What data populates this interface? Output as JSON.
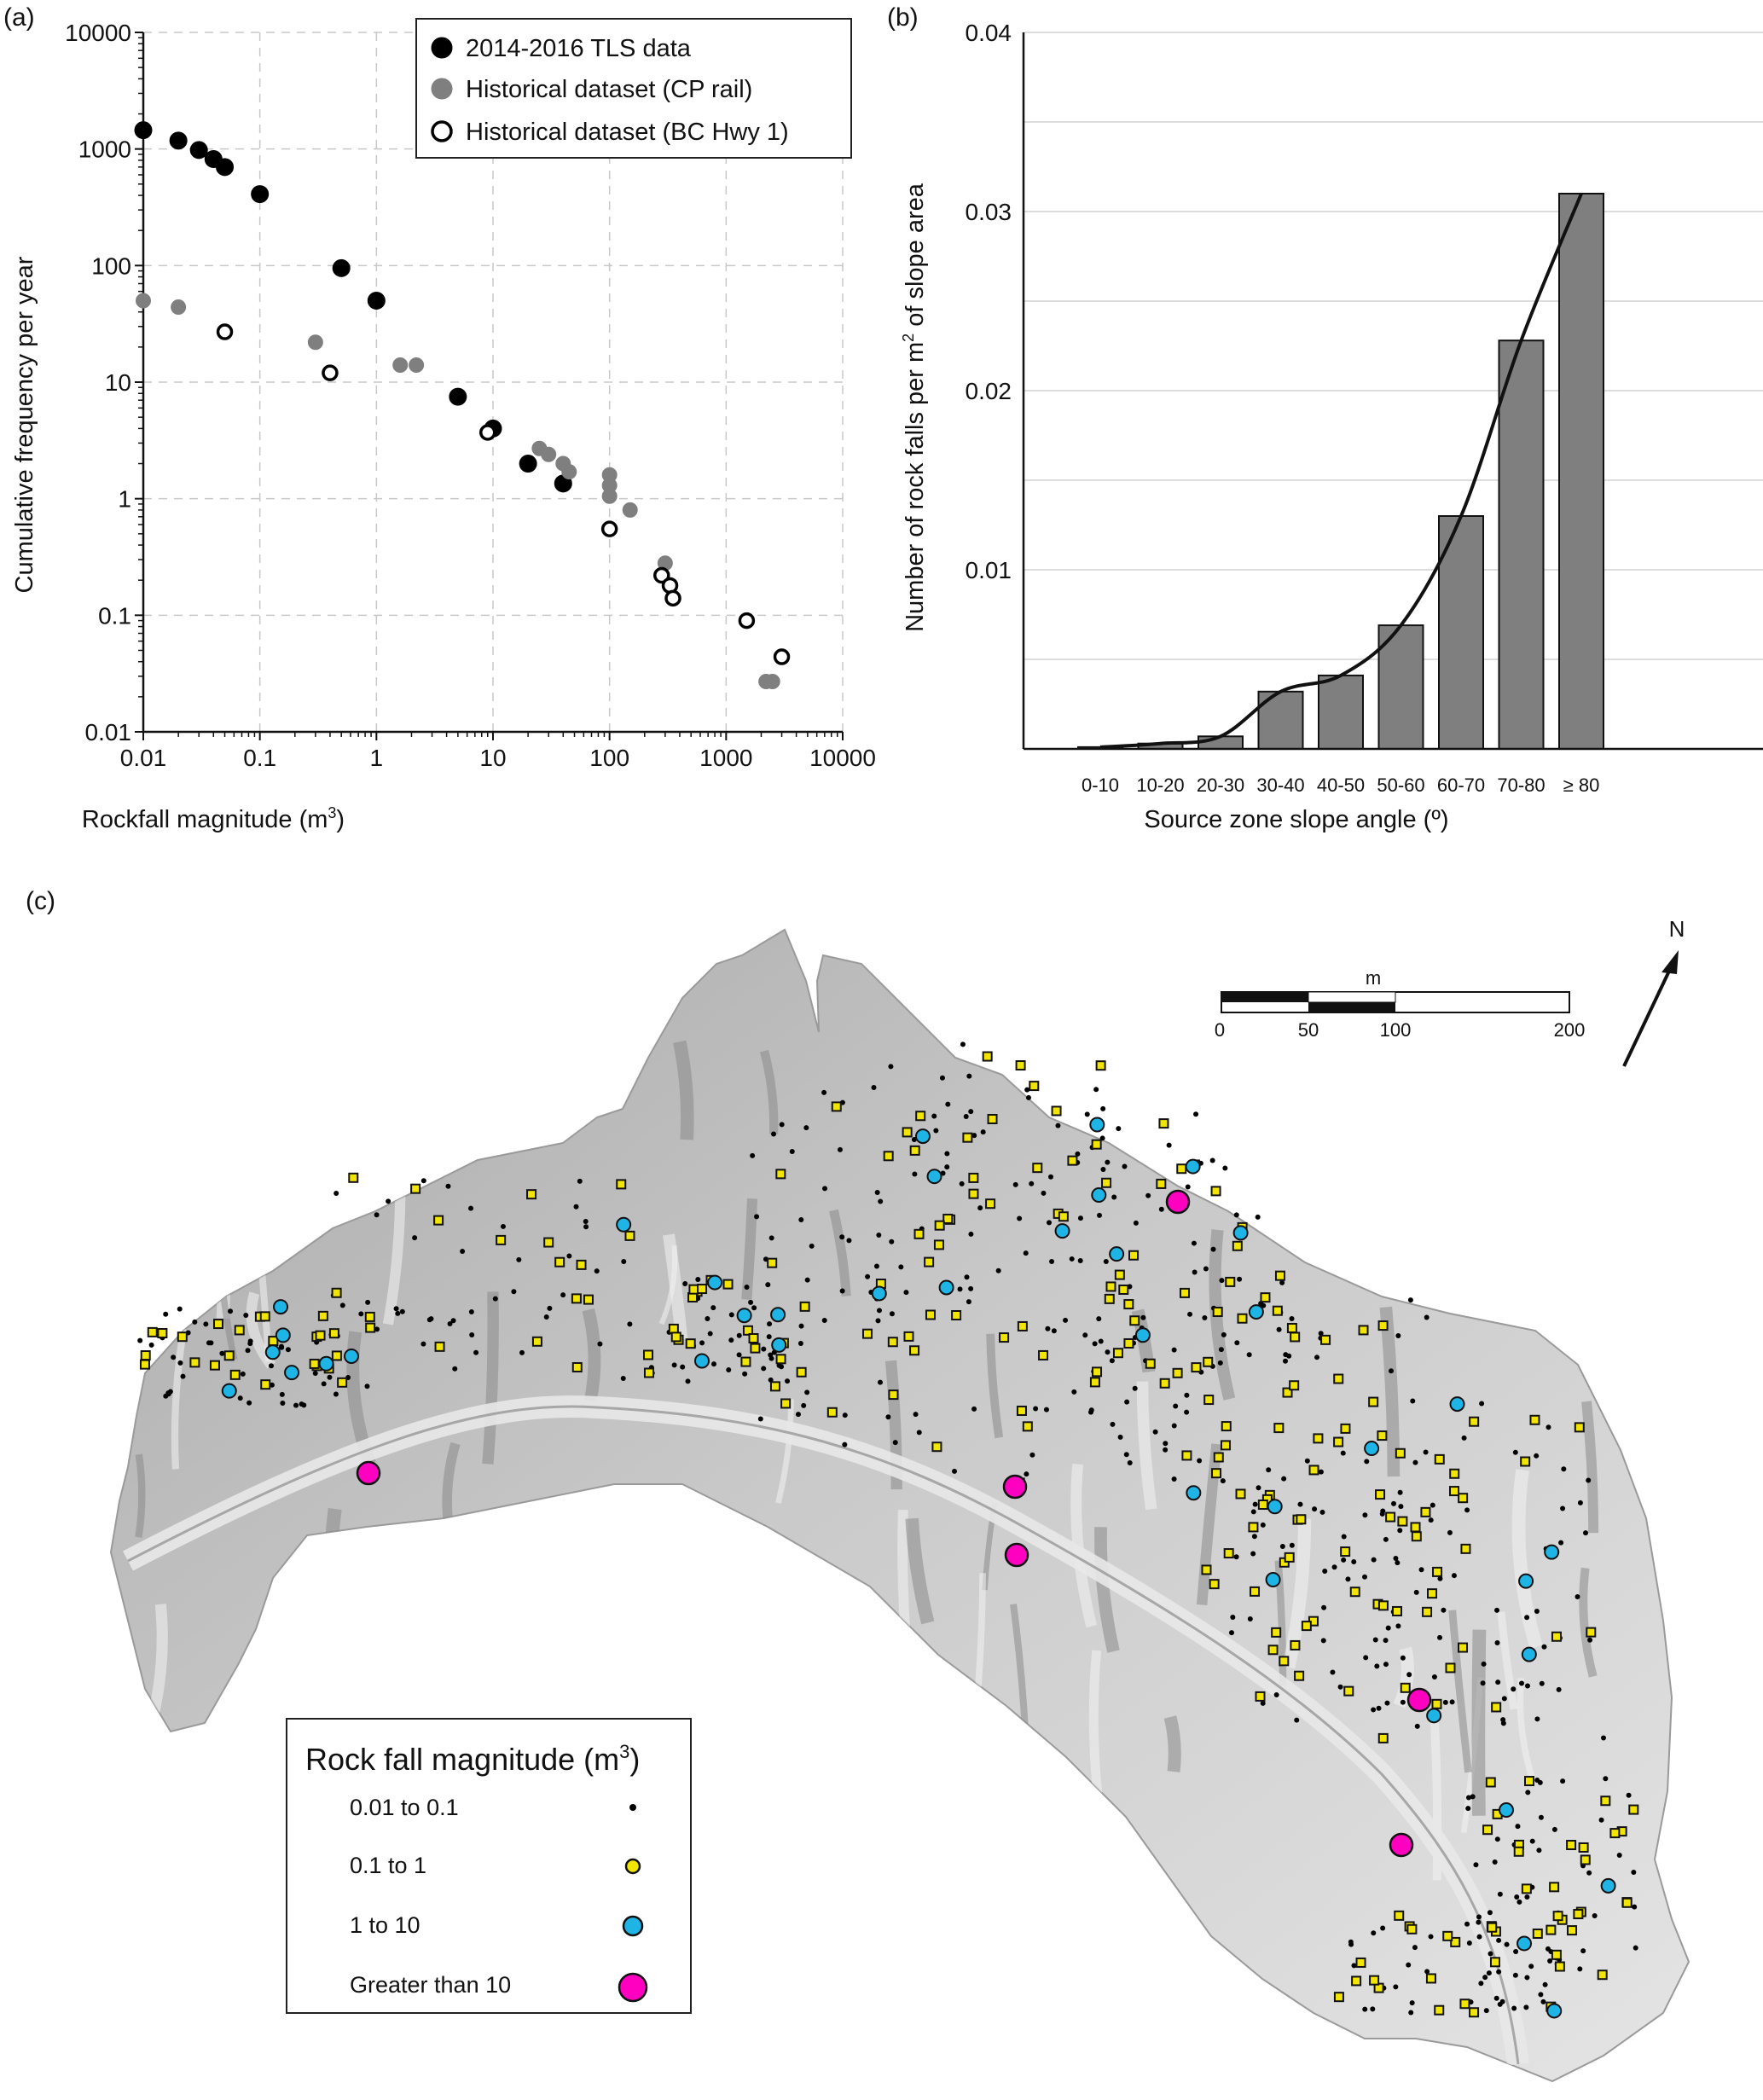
{
  "panel_labels": {
    "a": "(a)",
    "b": "(b)",
    "c": "(c)"
  },
  "colors": {
    "tls": "#000000",
    "cp_rail": "#7f7f7f",
    "bc_hwy_fill": "#ffffff",
    "bar": "#7f7f7f",
    "small": "#000000",
    "medium": "#f2e600",
    "large": "#1eb4e6",
    "xlarge": "#ff00c0",
    "terrain_light": "#e6e6e6",
    "terrain_dark": "#8f8f8f"
  },
  "chart_data": [
    {
      "id": "a",
      "type": "scatter",
      "xscale": "log",
      "yscale": "log",
      "xlim": [
        0.01,
        10000
      ],
      "ylim": [
        0.01,
        10000
      ],
      "grid": true,
      "xlabel": "Rockfall magnitude (m",
      "xlabel_sup": "3",
      "xlabel_end": ")",
      "ylabel": "Cumulative frequency per year",
      "xticks": [
        0.01,
        0.1,
        1,
        10,
        100,
        1000,
        10000
      ],
      "xtick_labels": [
        "0.01",
        "0.1",
        "1",
        "10",
        "100",
        "1000",
        "10000"
      ],
      "yticks": [
        0.01,
        0.1,
        1,
        10,
        100,
        1000,
        10000
      ],
      "ytick_labels": [
        "0.01",
        "0.1",
        "1",
        "10",
        "100",
        "1000",
        "10000"
      ],
      "legend_position": "top-right",
      "series": [
        {
          "name": "2014-2016 TLS data",
          "style": "filled-black",
          "points": [
            [
              0.01,
              1450
            ],
            [
              0.02,
              1180
            ],
            [
              0.03,
              980
            ],
            [
              0.04,
              820
            ],
            [
              0.05,
              700
            ],
            [
              0.1,
              410
            ],
            [
              0.5,
              95
            ],
            [
              1,
              50
            ],
            [
              5,
              7.5
            ],
            [
              10,
              4
            ],
            [
              20,
              2
            ],
            [
              40,
              1.35
            ]
          ]
        },
        {
          "name": "Historical dataset (CP rail)",
          "style": "filled-grey",
          "points": [
            [
              0.01,
              50
            ],
            [
              0.02,
              44
            ],
            [
              0.3,
              22
            ],
            [
              1.6,
              14
            ],
            [
              2.2,
              14
            ],
            [
              25,
              2.7
            ],
            [
              30,
              2.4
            ],
            [
              40,
              2
            ],
            [
              45,
              1.7
            ],
            [
              100,
              1.6
            ],
            [
              100,
              1.3
            ],
            [
              100,
              1.05
            ],
            [
              150,
              0.8
            ],
            [
              300,
              0.28
            ],
            [
              2200,
              0.027
            ],
            [
              2500,
              0.027
            ]
          ]
        },
        {
          "name": "Historical dataset (BC Hwy 1)",
          "style": "open-black",
          "points": [
            [
              0.05,
              27
            ],
            [
              0.4,
              12
            ],
            [
              9,
              3.7
            ],
            [
              100,
              0.55
            ],
            [
              280,
              0.22
            ],
            [
              330,
              0.18
            ],
            [
              350,
              0.14
            ],
            [
              1500,
              0.09
            ],
            [
              3000,
              0.044
            ]
          ]
        }
      ]
    },
    {
      "id": "b",
      "type": "bar",
      "categories": [
        "0-10",
        "10-20",
        "20-30",
        "30-40",
        "40-50",
        "50-60",
        "60-70",
        "70-80",
        "≥ 80"
      ],
      "values": [
        0.0001,
        0.0003,
        0.0007,
        0.0032,
        0.0041,
        0.0069,
        0.013,
        0.0228,
        0.031
      ],
      "trend_line": [
        0.0001,
        0.0003,
        0.0007,
        0.0032,
        0.0041,
        0.0069,
        0.013,
        0.0228,
        0.031
      ],
      "ylim": [
        0,
        0.04
      ],
      "yticks": [
        0.01,
        0.02,
        0.03,
        0.04
      ],
      "ytick_labels": [
        "0.01",
        "0.02",
        "0.03",
        "0.04"
      ],
      "xlabel": "Source zone slope angle (º)",
      "ylabel_pre": "Number of  rock falls per m",
      "ylabel_sup": "2",
      "ylabel_post": " of slope area"
    }
  ],
  "map": {
    "north_label": "N",
    "scale_unit": "m",
    "scale_labels": [
      "0",
      "50",
      "100",
      "200"
    ],
    "legend_title": "Rock fall magnitude (m",
    "legend_title_sup": "3",
    "legend_title_end": ")",
    "legend_items": [
      {
        "label": "0.01 to 0.1",
        "cls": "small"
      },
      {
        "label": "0.1 to 1",
        "cls": "medium"
      },
      {
        "label": "1 to 10",
        "cls": "large"
      },
      {
        "label": "Greater than 10",
        "cls": "xlarge"
      }
    ]
  }
}
